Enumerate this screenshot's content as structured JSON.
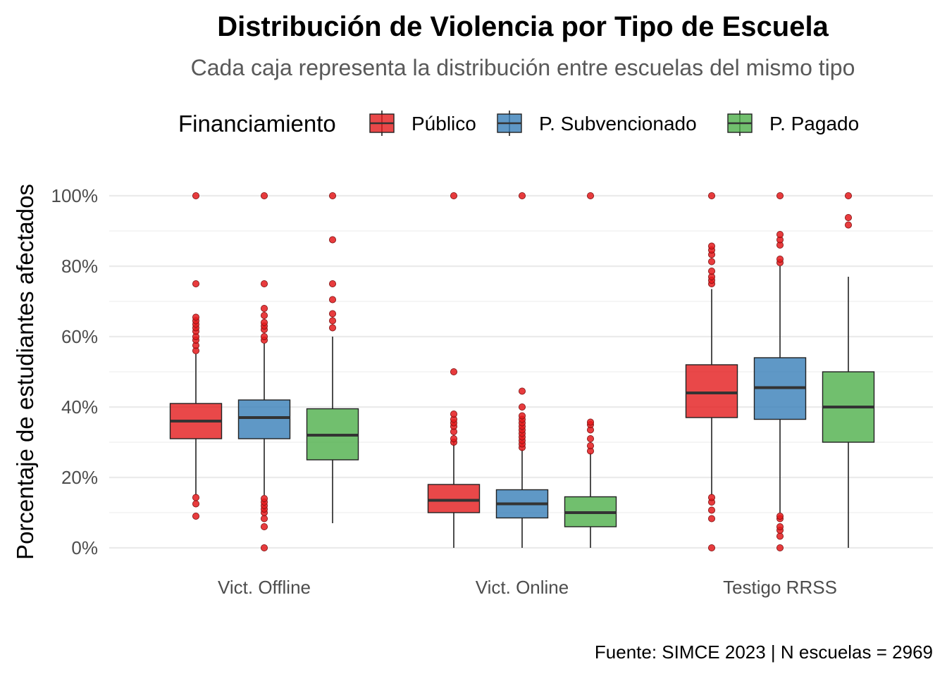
{
  "chart_data": {
    "type": "boxplot",
    "title": "Distribución de Violencia por Tipo de Escuela",
    "subtitle": "Cada caja representa la distribución entre escuelas del mismo tipo",
    "ylabel": "Porcentaje de estudiantes afectados",
    "xlabel": "",
    "caption": "Fuente: SIMCE 2023 | N escuelas = 2969",
    "ylim": [
      -0.05,
      1.09
    ],
    "y_ticks": [
      0,
      0.2,
      0.4,
      0.6,
      0.8,
      1.0
    ],
    "y_tick_labels": [
      "0%",
      "20%",
      "40%",
      "60%",
      "80%",
      "100%"
    ],
    "grid": true,
    "legend": {
      "title": "Financiamiento",
      "position": "top",
      "entries": [
        "Público",
        "P. Subvencionado",
        "P. Pagado"
      ]
    },
    "outlier_color": "#e41a1c",
    "categories": [
      "Vict. Offline",
      "Vict. Online",
      "Testigo RRSS"
    ],
    "series": [
      {
        "name": "Público",
        "color": "#e41a1c",
        "boxes": [
          {
            "whisker_low": 0.15,
            "q1": 0.31,
            "median": 0.36,
            "q3": 0.41,
            "whisker_high": 0.55,
            "outliers": [
              0.09,
              0.125,
              0.143,
              0.56,
              0.575,
              0.59,
              0.6,
              0.615,
              0.625,
              0.635,
              0.645,
              0.655,
              0.75,
              1.0
            ]
          },
          {
            "whisker_low": 0.0,
            "q1": 0.1,
            "median": 0.135,
            "q3": 0.18,
            "whisker_high": 0.3,
            "outliers": [
              0.3,
              0.31,
              0.33,
              0.345,
              0.355,
              0.365,
              0.38,
              0.5,
              1.0
            ]
          },
          {
            "whisker_low": 0.15,
            "q1": 0.37,
            "median": 0.44,
            "q3": 0.52,
            "whisker_high": 0.735,
            "outliers": [
              0.0,
              0.083,
              0.107,
              0.13,
              0.143,
              0.75,
              0.76,
              0.77,
              0.786,
              0.813,
              0.833,
              0.846,
              0.857,
              1.0
            ]
          }
        ]
      },
      {
        "name": "P. Subvencionado",
        "color": "#377eb8",
        "boxes": [
          {
            "whisker_low": 0.15,
            "q1": 0.31,
            "median": 0.37,
            "q3": 0.42,
            "whisker_high": 0.58,
            "outliers": [
              0.0,
              0.06,
              0.083,
              0.1,
              0.11,
              0.12,
              0.13,
              0.14,
              0.59,
              0.6,
              0.62,
              0.63,
              0.64,
              0.66,
              0.68,
              0.75,
              1.0
            ]
          },
          {
            "whisker_low": 0.0,
            "q1": 0.085,
            "median": 0.125,
            "q3": 0.165,
            "whisker_high": 0.28,
            "outliers": [
              0.285,
              0.295,
              0.305,
              0.315,
              0.325,
              0.335,
              0.345,
              0.355,
              0.365,
              0.375,
              0.4,
              0.445,
              1.0
            ]
          },
          {
            "whisker_low": 0.1,
            "q1": 0.365,
            "median": 0.455,
            "q3": 0.54,
            "whisker_high": 0.8,
            "outliers": [
              0.0,
              0.033,
              0.05,
              0.06,
              0.083,
              0.09,
              0.81,
              0.82,
              0.86,
              0.875,
              0.89,
              1.0
            ]
          }
        ]
      },
      {
        "name": "P. Pagado",
        "color": "#4daf4a",
        "boxes": [
          {
            "whisker_low": 0.07,
            "q1": 0.25,
            "median": 0.32,
            "q3": 0.395,
            "whisker_high": 0.6,
            "outliers": [
              0.625,
              0.645,
              0.665,
              0.705,
              0.75,
              0.875,
              1.0
            ]
          },
          {
            "whisker_low": 0.0,
            "q1": 0.06,
            "median": 0.1,
            "q3": 0.145,
            "whisker_high": 0.27,
            "outliers": [
              0.275,
              0.29,
              0.31,
              0.335,
              0.35,
              0.357,
              1.0
            ]
          },
          {
            "whisker_low": 0.0,
            "q1": 0.3,
            "median": 0.4,
            "q3": 0.5,
            "whisker_high": 0.77,
            "outliers": [
              0.917,
              0.938,
              1.0
            ]
          }
        ]
      }
    ]
  }
}
